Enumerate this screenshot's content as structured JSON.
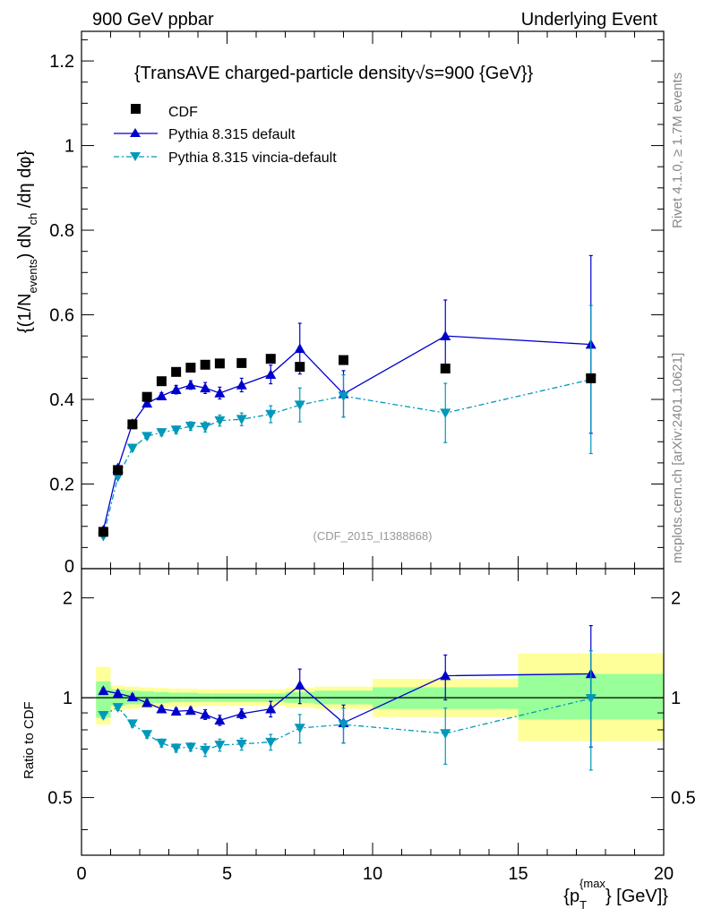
{
  "header": {
    "left": "900 GeV ppbar",
    "right": "Underlying Event"
  },
  "side_labels": {
    "rivet": "Rivet 4.1.0, ≥ 1.7M events",
    "mcplots": "mcplots.cern.ch [arXiv:2401.10621]"
  },
  "watermark": "(CDF_2015_I1388868)",
  "chart_data": {
    "type": "scatter",
    "title": "{TransAVE charged-particle density",
    "title_sqrt": "√s=900 {GeV}}",
    "ylabel": "{(1/N_events) dN_ch /dη dφ}",
    "ylabel_parts": {
      "main": "{(1/N",
      "sub1": "events",
      "mid": ") dN",
      "sub2": "ch",
      "end": " /dη  dφ}"
    },
    "xlabel_parts": {
      "pre": "{p",
      "sub": "T",
      "sup": "{max",
      "post": "} [GeV]}"
    },
    "ratio_ylabel": "Ratio to CDF",
    "xlim": [
      0,
      20
    ],
    "ylim": [
      0,
      1.27
    ],
    "ratio_ylim": [
      0.335,
      2.45
    ],
    "xticks": [
      0,
      5,
      10,
      15,
      20
    ],
    "xtick_labels": [
      "0",
      "5",
      "10",
      "15",
      "20"
    ],
    "yticks": [
      0.2,
      0.4,
      0.6,
      0.8,
      1,
      1.2
    ],
    "ytick_labels": [
      "0.2",
      "0.4",
      "0.6",
      "0.8",
      "1",
      "1.2"
    ],
    "ytick_zero_label": "0",
    "ratio_yticks": [
      0.5,
      1,
      2
    ],
    "ratio_ytick_labels": [
      "0.5",
      "1",
      "2"
    ],
    "legend": [
      {
        "label": "CDF",
        "marker": "square",
        "color": "#000000"
      },
      {
        "label": "Pythia 8.315 default",
        "marker": "triangle-up",
        "color": "#0000cc"
      },
      {
        "label": "Pythia 8.315 vincia-default",
        "marker": "triangle-down",
        "color": "#0099bb"
      }
    ],
    "series": [
      {
        "name": "CDF",
        "x": [
          0.75,
          1.25,
          1.75,
          2.25,
          2.75,
          3.25,
          3.75,
          4.25,
          4.75,
          5.5,
          6.5,
          7.5,
          9.0,
          12.5,
          17.5
        ],
        "xerr": [
          0.25,
          0.25,
          0.25,
          0.25,
          0.25,
          0.25,
          0.25,
          0.25,
          0.25,
          0.5,
          0.5,
          0.5,
          1.0,
          2.5,
          2.5
        ],
        "y": [
          0.087,
          0.233,
          0.341,
          0.406,
          0.443,
          0.465,
          0.475,
          0.482,
          0.485,
          0.486,
          0.496,
          0.477,
          0.493,
          0.473,
          0.45
        ]
      },
      {
        "name": "Pythia 8.315 default",
        "x": [
          0.75,
          1.25,
          1.75,
          2.25,
          2.75,
          3.25,
          3.75,
          4.25,
          4.75,
          5.5,
          6.5,
          7.5,
          9.0,
          12.5,
          17.5
        ],
        "y": [
          0.091,
          0.238,
          0.343,
          0.391,
          0.408,
          0.423,
          0.434,
          0.427,
          0.415,
          0.434,
          0.459,
          0.52,
          0.413,
          0.55,
          0.53
        ],
        "yerr": [
          0.002,
          0.004,
          0.006,
          0.008,
          0.008,
          0.01,
          0.01,
          0.013,
          0.014,
          0.016,
          0.022,
          0.06,
          0.055,
          0.085,
          0.21
        ]
      },
      {
        "name": "Pythia 8.315 vincia-default",
        "x": [
          0.75,
          1.25,
          1.75,
          2.25,
          2.75,
          3.25,
          3.75,
          4.25,
          4.75,
          5.5,
          6.5,
          7.5,
          9.0,
          12.5,
          17.5
        ],
        "y": [
          0.077,
          0.217,
          0.285,
          0.313,
          0.322,
          0.328,
          0.337,
          0.335,
          0.35,
          0.353,
          0.365,
          0.387,
          0.408,
          0.368,
          0.447
        ],
        "yerr": [
          0.002,
          0.004,
          0.006,
          0.007,
          0.008,
          0.009,
          0.01,
          0.012,
          0.013,
          0.015,
          0.02,
          0.04,
          0.05,
          0.07,
          0.175
        ]
      }
    ],
    "ratio_series": [
      {
        "name": "Pythia 8.315 default",
        "y": [
          1.05,
          1.03,
          1.005,
          0.965,
          0.925,
          0.91,
          0.915,
          0.89,
          0.855,
          0.895,
          0.925,
          1.09,
          0.84,
          1.165,
          1.18
        ],
        "yerr": [
          0.02,
          0.02,
          0.02,
          0.02,
          0.02,
          0.02,
          0.02,
          0.03,
          0.03,
          0.03,
          0.05,
          0.13,
          0.11,
          0.18,
          0.47
        ]
      },
      {
        "name": "Pythia 8.315 vincia-default",
        "y": [
          0.885,
          0.935,
          0.835,
          0.775,
          0.73,
          0.705,
          0.71,
          0.695,
          0.72,
          0.725,
          0.735,
          0.81,
          0.83,
          0.78,
          0.995
        ],
        "yerr": [
          0.02,
          0.02,
          0.02,
          0.02,
          0.02,
          0.02,
          0.02,
          0.03,
          0.03,
          0.03,
          0.04,
          0.08,
          0.1,
          0.15,
          0.39
        ]
      }
    ],
    "uncertainty_bands": {
      "x_edges": [
        0.5,
        1.0,
        1.5,
        2.0,
        2.5,
        3.0,
        3.5,
        4.0,
        4.5,
        5.0,
        6.0,
        7.0,
        8.0,
        10.0,
        15.0,
        20.0
      ],
      "yellow_lo": [
        0.83,
        0.915,
        0.925,
        0.93,
        0.935,
        0.94,
        0.94,
        0.945,
        0.945,
        0.945,
        0.945,
        0.935,
        0.925,
        0.875,
        0.74
      ],
      "yellow_hi": [
        1.24,
        1.09,
        1.08,
        1.075,
        1.07,
        1.065,
        1.065,
        1.06,
        1.06,
        1.06,
        1.06,
        1.07,
        1.08,
        1.14,
        1.36
      ],
      "green_lo": [
        0.87,
        0.945,
        0.955,
        0.96,
        0.965,
        0.97,
        0.97,
        0.972,
        0.972,
        0.972,
        0.972,
        0.965,
        0.955,
        0.925,
        0.86
      ],
      "green_hi": [
        1.12,
        1.06,
        1.05,
        1.045,
        1.04,
        1.035,
        1.035,
        1.03,
        1.03,
        1.03,
        1.03,
        1.04,
        1.05,
        1.075,
        1.18
      ],
      "yellow_color": "#ffff99",
      "green_color": "#99ff99"
    }
  }
}
